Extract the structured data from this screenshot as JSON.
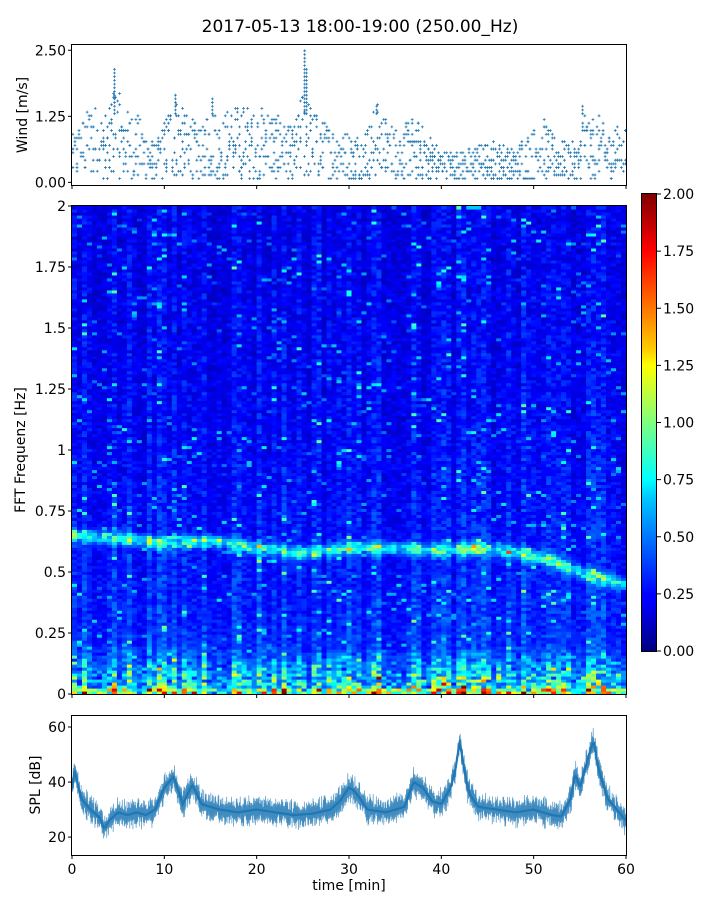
{
  "title": "2017-05-13 18:00-19:00 (250.00_Hz)",
  "chart_data": [
    {
      "type": "scatter",
      "name": "wind",
      "ylabel": "Wind [m/s]",
      "xlim": [
        0,
        60
      ],
      "ylim": [
        -0.05,
        2.6
      ],
      "yticks": [
        "0.00",
        "1.25",
        "2.50"
      ],
      "marker": "+",
      "color": "#1f77b4",
      "envelope": {
        "t": [
          0,
          2,
          4,
          4.6,
          5.5,
          7,
          9,
          10,
          11,
          12,
          14,
          15,
          16,
          17,
          19,
          20,
          21,
          22,
          24,
          25,
          25.8,
          27,
          29,
          31,
          32,
          33,
          34,
          36,
          36.5,
          38,
          40,
          42,
          44,
          46,
          48,
          49,
          50,
          51,
          52,
          53,
          55,
          55.3,
          56,
          57,
          58,
          59,
          60
        ],
        "top": [
          0.85,
          1.5,
          1.3,
          2.1,
          1.4,
          1.3,
          0.7,
          1.2,
          1.7,
          1.4,
          1.0,
          1.6,
          1.2,
          1.4,
          1.5,
          1.3,
          1.5,
          1.3,
          1.0,
          1.8,
          1.5,
          1.2,
          1.0,
          0.9,
          1.1,
          1.5,
          1.2,
          1.0,
          1.3,
          1.1,
          0.6,
          0.6,
          0.7,
          0.8,
          0.6,
          0.9,
          1.0,
          1.3,
          0.9,
          0.8,
          0.7,
          1.5,
          1.2,
          1.3,
          0.9,
          1.1,
          1.0
        ]
      },
      "peaks": [
        {
          "x": 4.6,
          "y": 2.15
        },
        {
          "x": 25.2,
          "y": 2.5
        },
        {
          "x": 25.4,
          "y": 2.2
        },
        {
          "x": 11.2,
          "y": 1.7
        },
        {
          "x": 15.2,
          "y": 1.6
        },
        {
          "x": 33.0,
          "y": 1.5
        },
        {
          "x": 55.3,
          "y": 1.5
        }
      ]
    },
    {
      "type": "heatmap",
      "name": "spectrogram",
      "ylabel": "FFT Frequenz [Hz]",
      "xlim": [
        0,
        60
      ],
      "ylim": [
        0,
        2
      ],
      "yticks": [
        "0",
        "0.25",
        "0.5",
        "0.75",
        "1",
        "1.25",
        "1.5",
        "1.75",
        "2"
      ],
      "colormap": "jet",
      "colorbar": {
        "vmin": 0,
        "vmax": 2,
        "ticks": [
          "0.00",
          "0.25",
          "0.50",
          "0.75",
          "1.00",
          "1.25",
          "1.50",
          "1.75",
          "2.00"
        ]
      },
      "dominant_band": {
        "t": [
          0,
          5,
          10,
          15,
          20,
          25,
          30,
          35,
          40,
          44,
          48,
          52,
          55,
          60
        ],
        "freq": [
          0.65,
          0.64,
          0.62,
          0.63,
          0.6,
          0.58,
          0.6,
          0.6,
          0.59,
          0.6,
          0.58,
          0.55,
          0.5,
          0.45
        ]
      },
      "low_freq_energy": "high (0-0.15 Hz)"
    },
    {
      "type": "line",
      "name": "spl",
      "ylabel": "SPL [dB]",
      "xlabel": "time [min]",
      "xlim": [
        0,
        60
      ],
      "ylim": [
        13.5,
        64
      ],
      "xticks": [
        "0",
        "10",
        "20",
        "30",
        "40",
        "50",
        "60"
      ],
      "yticks": [
        "20",
        "40",
        "60"
      ],
      "color": "#1f77b4",
      "t": [
        0,
        0.3,
        1,
        2,
        3,
        3.5,
        4,
        5,
        6,
        7,
        8,
        9,
        10,
        11,
        11.5,
        12,
        13,
        13.5,
        14,
        15,
        16,
        18,
        20,
        22,
        24,
        26,
        28,
        29,
        30,
        30.5,
        31,
        32,
        34,
        36,
        37,
        38,
        39,
        40,
        41,
        41.5,
        42,
        42.5,
        43,
        44,
        46,
        48,
        50,
        52,
        53,
        54,
        54.5,
        55,
        56,
        56.5,
        57,
        58,
        59,
        60
      ],
      "spl": [
        38,
        44,
        34,
        30,
        27,
        23,
        26,
        29,
        28,
        29,
        28,
        30,
        38,
        42,
        37,
        32,
        39,
        36,
        32,
        31,
        30,
        29,
        30,
        29,
        28,
        28.5,
        30,
        33,
        38,
        37,
        35,
        30,
        29,
        31,
        40,
        38,
        33,
        32,
        38,
        44,
        55,
        44,
        36,
        31,
        30,
        29,
        30,
        28,
        27.5,
        34,
        43,
        38,
        50,
        55,
        45,
        34,
        30,
        26
      ],
      "band_halfwidth_db": 3.5
    }
  ]
}
